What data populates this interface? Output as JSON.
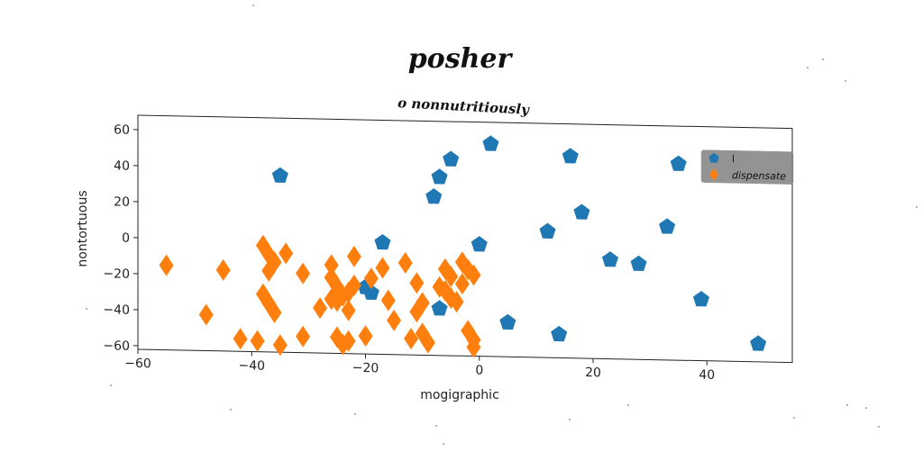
{
  "chart_data": {
    "type": "scatter",
    "title": "posher",
    "subtitle": "o nonnutritiously",
    "xlabel": "mogigraphic",
    "ylabel": "nontortuous",
    "xlim": [
      -60,
      55
    ],
    "ylim": [
      -62,
      68
    ],
    "xticks": [
      -60,
      -40,
      -20,
      0,
      20,
      40
    ],
    "yticks": [
      -60,
      -40,
      -20,
      0,
      20,
      40,
      60
    ],
    "xtick_labels": [
      "−60",
      "−40",
      "−20",
      "0",
      "20",
      "40"
    ],
    "ytick_labels": [
      "−60",
      "−40",
      "−20",
      "0",
      "20",
      "40",
      "60"
    ],
    "grid": false,
    "legend_position": "top-right",
    "series": [
      {
        "name": "l",
        "color": "#1f77b4",
        "marker": "pentagon",
        "points": [
          [
            -35,
            36
          ],
          [
            -8,
            26
          ],
          [
            -7,
            37
          ],
          [
            -5,
            47
          ],
          [
            2,
            56
          ],
          [
            16,
            50
          ],
          [
            18,
            19
          ],
          [
            12,
            8
          ],
          [
            33,
            12
          ],
          [
            35,
            47
          ],
          [
            23,
            -7
          ],
          [
            28,
            -9
          ],
          [
            -17,
            0
          ],
          [
            0,
            0
          ],
          [
            -20,
            -25
          ],
          [
            -19,
            -28
          ],
          [
            -7,
            -36
          ],
          [
            5,
            -43
          ],
          [
            14,
            -49
          ],
          [
            39,
            -28
          ],
          [
            49,
            -52
          ]
        ]
      },
      {
        "name": "dispensate",
        "color": "#ff7f0e",
        "marker": "thin_diamond",
        "points": [
          [
            -55,
            -15
          ],
          [
            -48,
            -42
          ],
          [
            -45,
            -17
          ],
          [
            -42,
            -55
          ],
          [
            -39,
            -56
          ],
          [
            -38,
            -3
          ],
          [
            -37,
            -8
          ],
          [
            -36,
            -12
          ],
          [
            -37,
            -17
          ],
          [
            -34,
            -7
          ],
          [
            -38,
            -30
          ],
          [
            -37,
            -35
          ],
          [
            -36,
            -40
          ],
          [
            -35,
            -58
          ],
          [
            -31,
            -18
          ],
          [
            -31,
            -53
          ],
          [
            -28,
            -37
          ],
          [
            -26,
            -13
          ],
          [
            -26,
            -20
          ],
          [
            -25,
            -25
          ],
          [
            -24,
            -30
          ],
          [
            -26,
            -32
          ],
          [
            -25,
            -33
          ],
          [
            -23,
            -28
          ],
          [
            -22,
            -24
          ],
          [
            -23,
            -38
          ],
          [
            -25,
            -53
          ],
          [
            -24,
            -57
          ],
          [
            -23,
            -55
          ],
          [
            -22,
            -8
          ],
          [
            -20,
            -52
          ],
          [
            -19,
            -20
          ],
          [
            -17,
            -14
          ],
          [
            -16,
            -32
          ],
          [
            -15,
            -43
          ],
          [
            -13,
            -11
          ],
          [
            -12,
            -53
          ],
          [
            -11,
            -38
          ],
          [
            -10,
            -33
          ],
          [
            -11,
            -22
          ],
          [
            -10,
            -50
          ],
          [
            -9,
            -55
          ],
          [
            -7,
            -24
          ],
          [
            -6,
            -14
          ],
          [
            -6,
            -26
          ],
          [
            -5,
            -18
          ],
          [
            -5,
            -30
          ],
          [
            -4,
            -32
          ],
          [
            -3,
            -22
          ],
          [
            -3,
            -10
          ],
          [
            -2,
            -14
          ],
          [
            -1,
            -17
          ],
          [
            -2,
            -48
          ],
          [
            -1,
            -53
          ],
          [
            -1,
            -57
          ]
        ]
      }
    ]
  }
}
